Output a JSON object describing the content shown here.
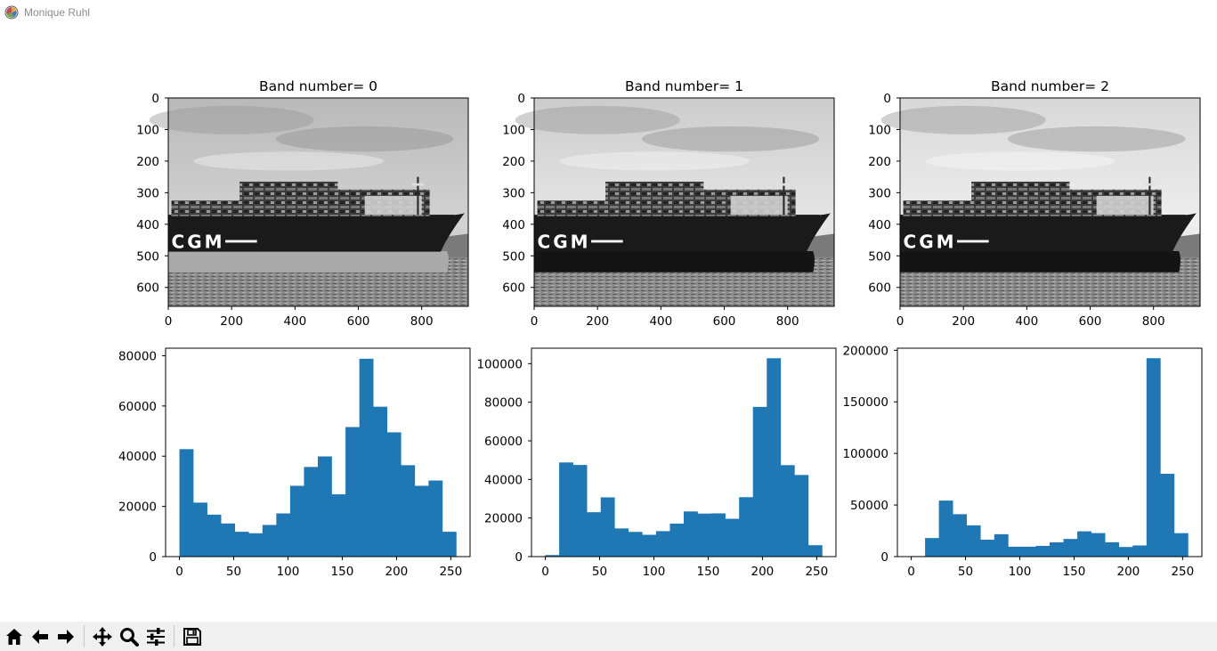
{
  "window": {
    "title": "Monique Ruhl"
  },
  "toolbar": {
    "buttons": [
      {
        "name": "home-button",
        "icon": "home-icon"
      },
      {
        "name": "back-button",
        "icon": "arrow-left-icon"
      },
      {
        "name": "forward-button",
        "icon": "arrow-right-icon"
      },
      {
        "name": "pan-button",
        "icon": "move-icon"
      },
      {
        "name": "zoom-button",
        "icon": "magnifier-icon"
      },
      {
        "name": "configure-subplots-button",
        "icon": "sliders-icon"
      },
      {
        "name": "save-button",
        "icon": "floppy-disk-icon"
      }
    ]
  },
  "images": [
    {
      "title": "Band number= 0",
      "xticks": [
        0,
        200,
        400,
        600,
        800
      ],
      "yticks": [
        0,
        100,
        200,
        300,
        400,
        500,
        600
      ],
      "xlim": [
        0,
        947
      ],
      "ylim": [
        660,
        0
      ],
      "colormap": "gray",
      "hull_tone": "light"
    },
    {
      "title": "Band number= 1",
      "xticks": [
        0,
        200,
        400,
        600,
        800
      ],
      "yticks": [
        0,
        100,
        200,
        300,
        400,
        500,
        600
      ],
      "xlim": [
        0,
        947
      ],
      "ylim": [
        660,
        0
      ],
      "colormap": "gray",
      "hull_tone": "dark"
    },
    {
      "title": "Band number= 2",
      "xticks": [
        0,
        200,
        400,
        600,
        800
      ],
      "yticks": [
        0,
        100,
        200,
        300,
        400,
        500,
        600
      ],
      "xlim": [
        0,
        947
      ],
      "ylim": [
        660,
        0
      ],
      "colormap": "gray",
      "hull_tone": "dark"
    }
  ],
  "chart_data": [
    {
      "type": "bar",
      "bin_edges": [
        0,
        12.75,
        25.5,
        38.25,
        51,
        63.75,
        76.5,
        89.25,
        102,
        114.75,
        127.5,
        140.25,
        153,
        165.75,
        178.5,
        191.25,
        204,
        216.75,
        229.5,
        242.25,
        255
      ],
      "values": [
        42800,
        21500,
        16700,
        13200,
        9900,
        9300,
        12600,
        17200,
        28200,
        35700,
        39900,
        24800,
        51600,
        78800,
        59700,
        49500,
        36400,
        28200,
        30300,
        9900
      ],
      "ylim": [
        0,
        83000
      ],
      "xlim": [
        -12.75,
        267.75
      ],
      "xticks": [
        0,
        50,
        100,
        150,
        200,
        250
      ],
      "yticks": [
        0,
        20000,
        40000,
        60000,
        80000
      ],
      "color": "#1f77b4"
    },
    {
      "type": "bar",
      "bin_edges": [
        0,
        12.75,
        25.5,
        38.25,
        51,
        63.75,
        76.5,
        89.25,
        102,
        114.75,
        127.5,
        140.25,
        153,
        165.75,
        178.5,
        191.25,
        204,
        216.75,
        229.5,
        242.25,
        255
      ],
      "values": [
        800,
        48800,
        47500,
        23000,
        30700,
        14600,
        12800,
        11300,
        13200,
        17100,
        23400,
        22300,
        22400,
        19600,
        30800,
        77600,
        102800,
        47400,
        42300,
        5900
      ],
      "ylim": [
        0,
        108000
      ],
      "xlim": [
        -12.75,
        267.75
      ],
      "xticks": [
        0,
        50,
        100,
        150,
        200,
        250
      ],
      "yticks": [
        0,
        20000,
        40000,
        60000,
        80000,
        100000
      ],
      "color": "#1f77b4"
    },
    {
      "type": "bar",
      "bin_edges": [
        0,
        12.75,
        25.5,
        38.25,
        51,
        63.75,
        76.5,
        89.25,
        102,
        114.75,
        127.5,
        140.25,
        153,
        165.75,
        178.5,
        191.25,
        204,
        216.75,
        229.5,
        242.25,
        255
      ],
      "values": [
        500,
        18000,
        54300,
        41100,
        30300,
        16400,
        21700,
        9600,
        9600,
        10400,
        13800,
        17100,
        24500,
        22800,
        13900,
        9300,
        10800,
        192300,
        80300,
        22700
      ],
      "ylim": [
        0,
        202000
      ],
      "xlim": [
        -12.75,
        267.75
      ],
      "xticks": [
        0,
        50,
        100,
        150,
        200,
        250
      ],
      "yticks": [
        0,
        50000,
        100000,
        150000,
        200000
      ],
      "color": "#1f77b4"
    }
  ]
}
